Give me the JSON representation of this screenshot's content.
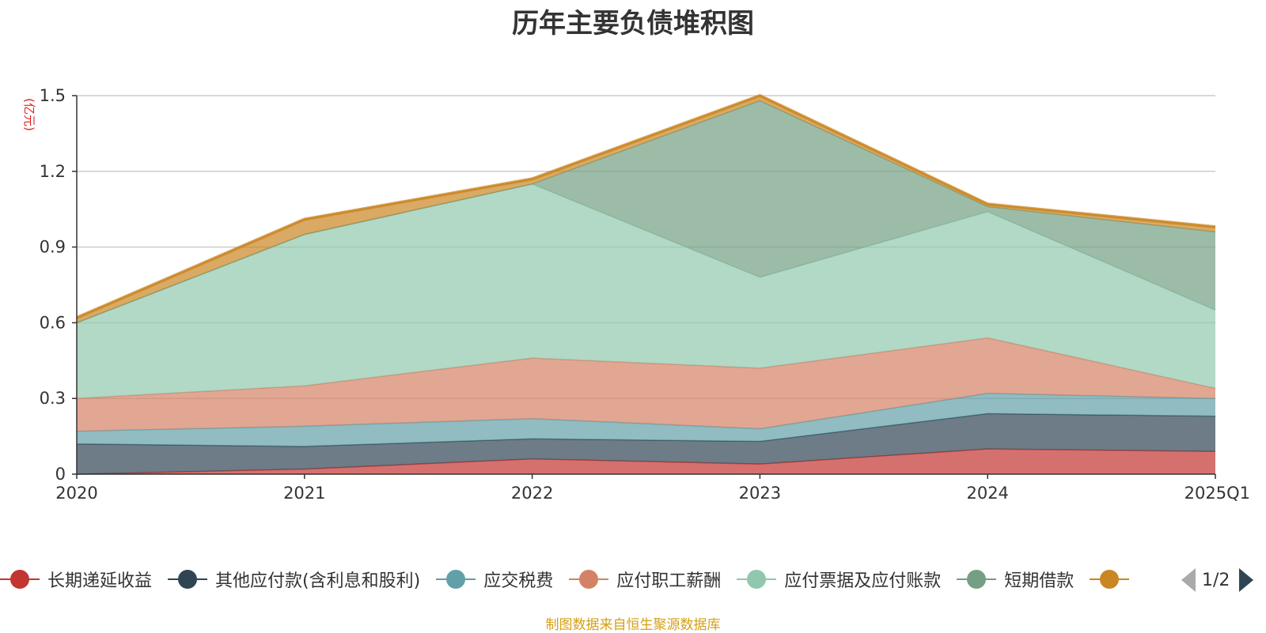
{
  "chart_data": {
    "type": "area",
    "stacked": true,
    "title": "历年主要负债堆积图",
    "ylabel": "(亿元)",
    "xlabel": "",
    "categories": [
      "2020",
      "2021",
      "2022",
      "2023",
      "2024",
      "2025Q1"
    ],
    "ylim": [
      0,
      1.5
    ],
    "yticks": [
      0,
      0.3,
      0.6,
      0.9,
      1.2,
      1.5
    ],
    "ytick_labels": [
      "0",
      "0.3",
      "0.6",
      "0.9",
      "1.2",
      "1.5"
    ],
    "grid": true,
    "legend_position": "bottom",
    "series": [
      {
        "name": "长期递延收益",
        "color": "#c23531",
        "values": [
          0.0,
          0.02,
          0.06,
          0.04,
          0.1,
          0.09
        ]
      },
      {
        "name": "其他应付款(含利息和股利)",
        "color": "#2f4554",
        "values": [
          0.12,
          0.09,
          0.08,
          0.09,
          0.14,
          0.14
        ]
      },
      {
        "name": "应交税费",
        "color": "#61a0a8",
        "values": [
          0.05,
          0.08,
          0.08,
          0.05,
          0.08,
          0.07
        ]
      },
      {
        "name": "应付职工薪酬",
        "color": "#d48265",
        "values": [
          0.13,
          0.16,
          0.24,
          0.24,
          0.22,
          0.04
        ]
      },
      {
        "name": "应付票据及应付账款",
        "color": "#91c7ae",
        "values": [
          0.3,
          0.6,
          0.69,
          0.36,
          0.5,
          0.31
        ]
      },
      {
        "name": "短期借款",
        "color": "#749f83",
        "values": [
          0.0,
          0.0,
          0.0,
          0.7,
          0.02,
          0.31
        ]
      },
      {
        "name": "",
        "color": "#ca8622",
        "values": [
          0.02,
          0.06,
          0.02,
          0.02,
          0.01,
          0.02
        ]
      }
    ]
  },
  "legend": {
    "page_indicator": "1/2"
  },
  "footer": {
    "source": "制图数据来自恒生聚源数据库"
  }
}
